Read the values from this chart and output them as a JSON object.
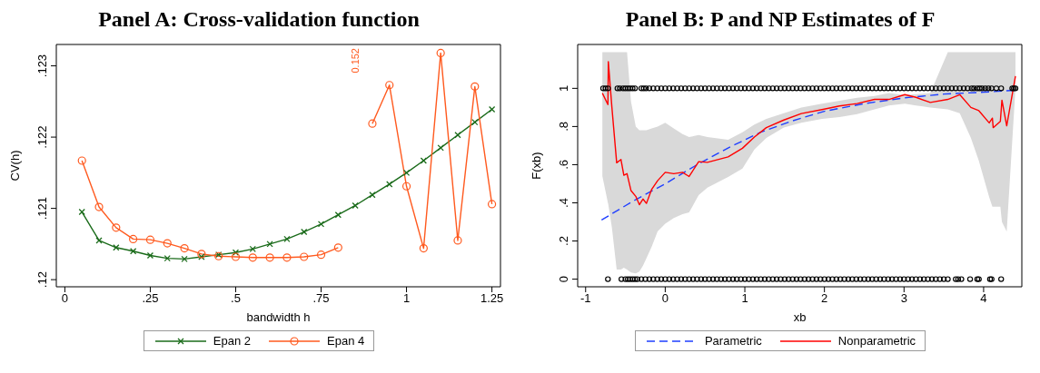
{
  "chart_data": [
    {
      "type": "line",
      "title": "Panel A: Cross-validation function",
      "xlabel": "bandwidth h",
      "ylabel": "CV(h)",
      "legend": "bottom",
      "x": [
        0.05,
        0.1,
        0.15,
        0.2,
        0.25,
        0.3,
        0.35,
        0.4,
        0.45,
        0.5,
        0.55,
        0.6,
        0.65,
        0.7,
        0.75,
        0.8,
        0.85,
        0.9,
        0.95,
        1,
        1.05,
        1.1,
        1.15,
        1.2,
        1.25
      ],
      "xlim": [
        -0.025,
        1.275
      ],
      "xticks": [
        0,
        {
          "value": 0.25,
          "label": ".25"
        },
        {
          "value": 0.5,
          "label": ".5"
        },
        {
          "value": 0.75,
          "label": ".75"
        },
        1,
        {
          "value": 1.25,
          "label": "1.25"
        }
      ],
      "ylim": [
        0.1199,
        0.1233
      ],
      "yticks": [
        {
          "value": 0.12,
          "label": ".12"
        },
        {
          "value": 0.121,
          "label": ".121"
        },
        {
          "value": 0.122,
          "label": ".122"
        },
        {
          "value": 0.123,
          "label": ".123"
        }
      ],
      "annotations": [
        "0.152"
      ],
      "series": [
        {
          "name": "Epan 2",
          "color": "#1a6b1a",
          "marker": "cross",
          "values": [
            0.12095,
            0.12055,
            0.12045,
            0.1204,
            0.12034,
            0.1203,
            0.12029,
            0.12032,
            0.12035,
            0.12038,
            0.12043,
            0.1205,
            0.12057,
            0.12067,
            0.12078,
            0.12091,
            0.12104,
            0.12119,
            0.12134,
            0.1215,
            0.12167,
            0.12185,
            0.12203,
            0.12221,
            0.12239
          ]
        },
        {
          "name": "Epan 4",
          "color": "#ff5a1f",
          "marker": "circle",
          "values": [
            0.12167,
            0.12102,
            0.12073,
            0.12057,
            0.12056,
            0.12051,
            0.12044,
            0.12036,
            0.12033,
            0.12032,
            0.12031,
            0.12031,
            0.12031,
            0.12032,
            0.12035,
            0.12045,
            null,
            0.12219,
            0.12273,
            0.12131,
            0.12044,
            0.12318,
            0.12055,
            0.12271,
            0.12106
          ]
        }
      ]
    },
    {
      "type": "line",
      "title": "Panel B: P and NP Estimates of F",
      "xlabel": "xb",
      "ylabel": "F(xb)",
      "legend": "bottom",
      "xlim": [
        -1.1,
        4.48
      ],
      "xticks": [
        -1,
        0,
        1,
        2,
        3,
        4
      ],
      "ylim": [
        -0.04,
        1.23
      ],
      "yticks": [
        0,
        {
          "value": 0.2,
          "label": ".2"
        },
        {
          "value": 0.4,
          "label": ".4"
        },
        {
          "value": 0.6,
          "label": ".6"
        },
        {
          "value": 0.8,
          "label": ".8"
        },
        1
      ],
      "series": [
        {
          "type": "scatter",
          "color": "#000000",
          "marker": "circle",
          "x": [
            -0.78,
            -0.75,
            -0.72,
            -0.6,
            -0.57,
            -0.53,
            -0.5,
            -0.47,
            -0.44,
            -0.41,
            -0.38,
            -0.3,
            -0.27,
            -0.24,
            -0.2,
            -0.15,
            -0.1,
            -0.05,
            0,
            0.05,
            0.1,
            0.15,
            0.2,
            0.25,
            0.3,
            0.35,
            0.4,
            0.45,
            0.5,
            0.55,
            0.6,
            0.65,
            0.7,
            0.75,
            0.8,
            0.85,
            0.9,
            0.95,
            1,
            1.05,
            1.1,
            1.15,
            1.2,
            1.25,
            1.3,
            1.35,
            1.4,
            1.45,
            1.5,
            1.55,
            1.6,
            1.65,
            1.7,
            1.75,
            1.8,
            1.85,
            1.9,
            1.95,
            2,
            2.05,
            2.1,
            2.15,
            2.2,
            2.25,
            2.3,
            2.35,
            2.4,
            2.45,
            2.5,
            2.55,
            2.6,
            2.65,
            2.7,
            2.75,
            2.8,
            2.85,
            2.9,
            2.95,
            3,
            3.05,
            3.1,
            3.15,
            3.2,
            3.25,
            3.3,
            3.35,
            3.4,
            3.45,
            3.5,
            3.55,
            3.6,
            3.65,
            3.7,
            3.75,
            3.8,
            3.85,
            3.88,
            3.92,
            3.95,
            3.98,
            4.02,
            4.06,
            4.1,
            4.16,
            4.22,
            4.36,
            4.38,
            4.4
          ],
          "values": [
            1,
            1,
            1,
            1,
            1,
            1,
            1,
            1,
            1,
            1,
            1,
            1,
            1,
            1,
            1,
            1,
            1,
            1,
            1,
            1,
            1,
            1,
            1,
            1,
            1,
            1,
            1,
            1,
            1,
            1,
            1,
            1,
            1,
            1,
            1,
            1,
            1,
            1,
            1,
            1,
            1,
            1,
            1,
            1,
            1,
            1,
            1,
            1,
            1,
            1,
            1,
            1,
            1,
            1,
            1,
            1,
            1,
            1,
            1,
            1,
            1,
            1,
            1,
            1,
            1,
            1,
            1,
            1,
            1,
            1,
            1,
            1,
            1,
            1,
            1,
            1,
            1,
            1,
            1,
            1,
            1,
            1,
            1,
            1,
            1,
            1,
            1,
            1,
            1,
            1,
            1,
            1,
            1,
            1,
            1,
            1,
            1,
            1,
            1,
            1,
            1,
            1,
            1,
            1,
            1,
            1,
            1,
            1
          ]
        },
        {
          "type": "scatter",
          "color": "#000000",
          "marker": "circle",
          "x": [
            -0.72,
            -0.55,
            -0.5,
            -0.47,
            -0.44,
            -0.41,
            -0.38,
            -0.35,
            -0.3,
            -0.25,
            -0.2,
            -0.15,
            -0.1,
            -0.05,
            0,
            0.05,
            0.1,
            0.15,
            0.2,
            0.25,
            0.3,
            0.35,
            0.4,
            0.45,
            0.5,
            0.55,
            0.6,
            0.65,
            0.7,
            0.75,
            0.8,
            0.85,
            0.9,
            0.95,
            1,
            1.05,
            1.1,
            1.15,
            1.2,
            1.25,
            1.3,
            1.35,
            1.4,
            1.45,
            1.5,
            1.55,
            1.6,
            1.65,
            1.7,
            1.75,
            1.8,
            1.85,
            1.9,
            1.95,
            2,
            2.05,
            2.1,
            2.15,
            2.2,
            2.25,
            2.3,
            2.35,
            2.4,
            2.45,
            2.5,
            2.55,
            2.6,
            2.65,
            2.7,
            2.75,
            2.8,
            2.85,
            2.9,
            2.95,
            3,
            3.05,
            3.1,
            3.15,
            3.2,
            3.25,
            3.3,
            3.35,
            3.4,
            3.45,
            3.5,
            3.55,
            3.65,
            3.68,
            3.72,
            3.83,
            3.92,
            3.94,
            4.08,
            4.1,
            4.22
          ],
          "values": [
            0,
            0,
            0,
            0,
            0,
            0,
            0,
            0,
            0,
            0,
            0,
            0,
            0,
            0,
            0,
            0,
            0,
            0,
            0,
            0,
            0,
            0,
            0,
            0,
            0,
            0,
            0,
            0,
            0,
            0,
            0,
            0,
            0,
            0,
            0,
            0,
            0,
            0,
            0,
            0,
            0,
            0,
            0,
            0,
            0,
            0,
            0,
            0,
            0,
            0,
            0,
            0,
            0,
            0,
            0,
            0,
            0,
            0,
            0,
            0,
            0,
            0,
            0,
            0,
            0,
            0,
            0,
            0,
            0,
            0,
            0,
            0,
            0,
            0,
            0,
            0,
            0,
            0,
            0,
            0,
            0,
            0,
            0,
            0,
            0,
            0,
            0,
            0,
            0,
            0,
            0,
            0,
            0,
            0,
            0
          ]
        },
        {
          "name": "Parametric",
          "color": "#1f3fff",
          "marker": "none",
          "line_style": "dashed",
          "x": [
            -0.8,
            -0.4,
            0,
            0.4,
            0.8,
            1.2,
            1.6,
            2,
            2.5,
            3,
            3.5,
            4,
            4.4
          ],
          "values": [
            0.31,
            0.41,
            0.5,
            0.6,
            0.69,
            0.77,
            0.83,
            0.88,
            0.92,
            0.95,
            0.97,
            0.98,
            0.99
          ]
        },
        {
          "name": "Nonparametric",
          "color": "#ff0000",
          "marker": "none",
          "line_style": "solid",
          "x": [
            -0.79,
            -0.72,
            -0.715,
            -0.67,
            -0.61,
            -0.556,
            -0.52,
            -0.48,
            -0.43,
            -0.37,
            -0.325,
            -0.28,
            -0.236,
            -0.17,
            -0.096,
            0,
            0.107,
            0.217,
            0.3,
            0.42,
            0.53,
            0.79,
            0.97,
            1.12,
            1.27,
            1.49,
            1.71,
            1.97,
            2.19,
            2.41,
            2.63,
            2.81,
            3.01,
            3.15,
            3.33,
            3.55,
            3.7,
            3.84,
            3.94,
            4.07,
            4.11,
            4.12,
            4.21,
            4.23,
            4.29,
            4.4
          ],
          "values": [
            0.975,
            0.915,
            1.14,
            0.9,
            0.61,
            0.627,
            0.545,
            0.553,
            0.464,
            0.434,
            0.39,
            0.42,
            0.397,
            0.471,
            0.516,
            0.56,
            0.553,
            0.56,
            0.538,
            0.616,
            0.612,
            0.641,
            0.686,
            0.745,
            0.794,
            0.834,
            0.868,
            0.889,
            0.908,
            0.92,
            0.942,
            0.942,
            0.967,
            0.953,
            0.926,
            0.942,
            0.967,
            0.9,
            0.883,
            0.819,
            0.844,
            0.794,
            0.827,
            0.938,
            0.804,
            1.064
          ],
          "lower": [
            0.54,
            0.4,
            0.39,
            0.27,
            0.05,
            0.05,
            0.06,
            0.05,
            0.035,
            0.03,
            0.04,
            0.07,
            0.11,
            0.17,
            0.25,
            0.29,
            0.32,
            0.34,
            0.35,
            0.44,
            0.48,
            0.535,
            0.58,
            0.68,
            0.74,
            0.795,
            0.82,
            0.84,
            0.85,
            0.865,
            0.89,
            0.91,
            0.92,
            0.91,
            0.9,
            0.89,
            0.87,
            0.74,
            0.62,
            0.43,
            0.38,
            0.38,
            0.38,
            0.3,
            0.25,
            1
          ],
          "upper": [
            1.19,
            1.19,
            1.19,
            1.19,
            1.19,
            1.19,
            1.19,
            1.19,
            0.93,
            0.8,
            0.78,
            0.78,
            0.78,
            0.79,
            0.8,
            0.82,
            0.79,
            0.76,
            0.745,
            0.755,
            0.745,
            0.73,
            0.77,
            0.81,
            0.84,
            0.87,
            0.9,
            0.92,
            0.935,
            0.95,
            0.96,
            0.975,
            0.965,
            0.97,
            0.975,
            1.19,
            1.19,
            1.19,
            1.19,
            1.19,
            1.19,
            1.19,
            1.19,
            1.19,
            1.19,
            1.19
          ]
        }
      ]
    }
  ]
}
